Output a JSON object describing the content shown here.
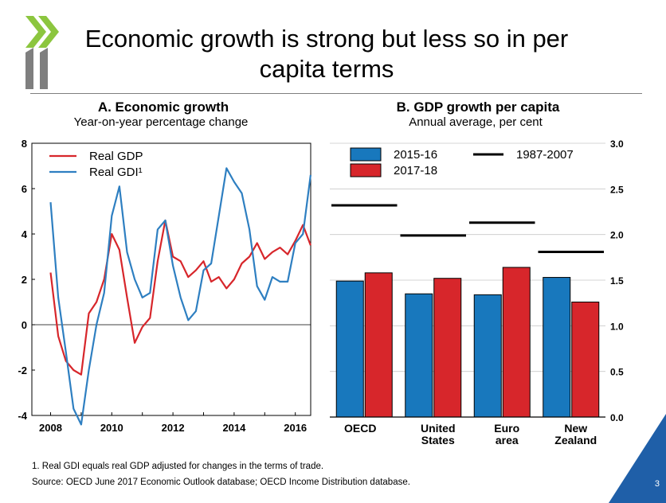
{
  "slide": {
    "title": "Economic growth is strong but less so in per capita terms",
    "title_line1": "Economic growth is strong but less so in per",
    "title_line2": "capita terms",
    "footnote": "1. Real GDI equals real GDP adjusted for changes in the terms of trade.",
    "source": "Source: OECD June 2017 Economic Outlook database; OECD Income Distribution database.",
    "page_number": "3",
    "colors": {
      "logo_green": "#8cc63f",
      "logo_grey": "#7f7f7f",
      "corner_blue": "#1f5fa8"
    }
  },
  "chart_data": [
    {
      "type": "line",
      "title": "A. Economic growth",
      "subtitle": "Year-on-year percentage change",
      "ylim": [
        -4,
        8
      ],
      "yticks": [
        "8",
        "6",
        "4",
        "2",
        "0",
        "-2",
        "-4"
      ],
      "xticks": [
        "2008",
        "2010",
        "2012",
        "2014",
        "2016"
      ],
      "xlim": [
        2008,
        2016.5
      ],
      "zero_line": true,
      "legend_position": "top-left",
      "series": [
        {
          "name": "Real GDP",
          "color": "#d7262b",
          "x": [
            2008.0,
            2008.25,
            2008.5,
            2008.75,
            2009.0,
            2009.25,
            2009.5,
            2009.75,
            2010.0,
            2010.25,
            2010.5,
            2010.75,
            2011.0,
            2011.25,
            2011.5,
            2011.75,
            2012.0,
            2012.25,
            2012.5,
            2012.75,
            2013.0,
            2013.25,
            2013.5,
            2013.75,
            2014.0,
            2014.25,
            2014.5,
            2014.75,
            2015.0,
            2015.25,
            2015.5,
            2015.75,
            2016.0,
            2016.25,
            2016.5
          ],
          "y": [
            2.3,
            -0.5,
            -1.6,
            -2.0,
            -2.2,
            0.5,
            1.0,
            2.0,
            4.0,
            3.3,
            1.2,
            -0.8,
            -0.1,
            0.3,
            2.8,
            4.6,
            3.0,
            2.8,
            2.1,
            2.4,
            2.8,
            1.9,
            2.1,
            1.6,
            2.0,
            2.7,
            3.0,
            3.6,
            2.9,
            3.2,
            3.4,
            3.1,
            3.7,
            4.4,
            3.5
          ]
        },
        {
          "name": "Real GDI¹",
          "color": "#2e7fc1",
          "x": [
            2008.0,
            2008.25,
            2008.5,
            2008.75,
            2009.0,
            2009.25,
            2009.5,
            2009.75,
            2010.0,
            2010.25,
            2010.5,
            2010.75,
            2011.0,
            2011.25,
            2011.5,
            2011.75,
            2012.0,
            2012.25,
            2012.5,
            2012.75,
            2013.0,
            2013.25,
            2013.5,
            2013.75,
            2014.0,
            2014.25,
            2014.5,
            2014.75,
            2015.0,
            2015.25,
            2015.5,
            2015.75,
            2016.0,
            2016.25,
            2016.5
          ],
          "y": [
            5.4,
            1.2,
            -1.2,
            -3.7,
            -4.4,
            -2.0,
            0.0,
            1.4,
            4.8,
            6.1,
            3.2,
            2.0,
            1.2,
            1.4,
            4.2,
            4.6,
            2.6,
            1.2,
            0.2,
            0.6,
            2.4,
            2.7,
            4.8,
            6.9,
            6.3,
            5.8,
            4.2,
            1.7,
            1.1,
            2.1,
            1.9,
            1.9,
            3.6,
            4.0,
            6.6
          ]
        }
      ]
    },
    {
      "type": "bar",
      "title": "B. GDP growth per capita",
      "subtitle": "Annual average, per cent",
      "categories": [
        "OECD",
        "United States",
        "Euro area",
        "New Zealand"
      ],
      "category_lines": [
        [
          "OECD"
        ],
        [
          "United",
          "States"
        ],
        [
          "Euro",
          "area"
        ],
        [
          "New",
          "Zealand"
        ]
      ],
      "ylim": [
        0,
        3
      ],
      "yticks": [
        "3.0",
        "2.5",
        "2.0",
        "1.5",
        "1.0",
        "0.5",
        "0.0"
      ],
      "yaxis_side": "right",
      "legend_position": "top",
      "series": [
        {
          "name": "2015-16",
          "color": "#1878bd",
          "values": [
            1.49,
            1.35,
            1.34,
            1.53
          ]
        },
        {
          "name": "2017-18",
          "color": "#d7262b",
          "values": [
            1.58,
            1.52,
            1.64,
            1.26
          ]
        }
      ],
      "reference": {
        "name": "1987-2007",
        "color": "#000000",
        "values": [
          2.32,
          1.99,
          2.13,
          1.81
        ]
      }
    }
  ]
}
